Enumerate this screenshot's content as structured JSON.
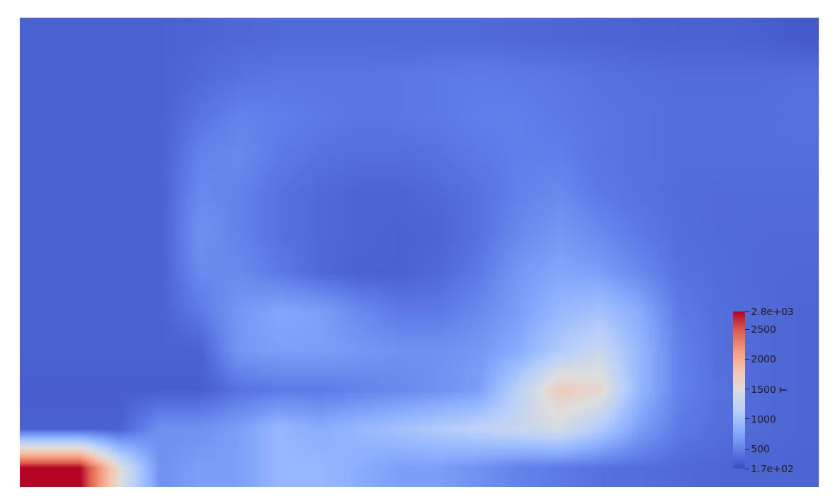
{
  "chart_data": {
    "type": "heatmap",
    "cells": [
      [
        300,
        300,
        300,
        300,
        320,
        340,
        350,
        350,
        350,
        350,
        350,
        350,
        340,
        330,
        320,
        310,
        300,
        300,
        290,
        250
      ],
      [
        300,
        300,
        300,
        300,
        350,
        400,
        420,
        420,
        420,
        430,
        450,
        460,
        450,
        430,
        400,
        380,
        370,
        370,
        370,
        380
      ],
      [
        300,
        300,
        300,
        300,
        420,
        500,
        480,
        450,
        420,
        430,
        450,
        480,
        480,
        450,
        420,
        400,
        380,
        380,
        380,
        400
      ],
      [
        300,
        300,
        300,
        300,
        500,
        550,
        450,
        400,
        380,
        380,
        400,
        450,
        480,
        480,
        420,
        400,
        380,
        380,
        380,
        380
      ],
      [
        300,
        300,
        300,
        300,
        550,
        500,
        400,
        350,
        320,
        320,
        350,
        400,
        500,
        550,
        450,
        400,
        370,
        360,
        360,
        360
      ],
      [
        300,
        300,
        300,
        300,
        600,
        500,
        400,
        350,
        320,
        300,
        320,
        400,
        550,
        650,
        550,
        450,
        380,
        360,
        350,
        350
      ],
      [
        300,
        300,
        300,
        300,
        550,
        550,
        450,
        350,
        300,
        300,
        350,
        450,
        650,
        750,
        700,
        550,
        400,
        370,
        350,
        340
      ],
      [
        300,
        300,
        300,
        300,
        450,
        650,
        750,
        700,
        550,
        450,
        450,
        550,
        700,
        900,
        1000,
        800,
        450,
        380,
        350,
        330
      ],
      [
        300,
        300,
        300,
        300,
        300,
        650,
        700,
        700,
        650,
        600,
        600,
        650,
        800,
        1100,
        1300,
        900,
        500,
        380,
        350,
        330
      ],
      [
        280,
        280,
        280,
        280,
        280,
        400,
        450,
        450,
        500,
        550,
        600,
        700,
        1200,
        1700,
        1600,
        900,
        500,
        400,
        350,
        330
      ],
      [
        300,
        300,
        300,
        600,
        600,
        700,
        900,
        800,
        900,
        1000,
        1100,
        1200,
        1300,
        1400,
        1100,
        700,
        450,
        380,
        350,
        330
      ],
      [
        2800,
        2800,
        1500,
        600,
        700,
        700,
        900,
        900,
        800,
        700,
        700,
        600,
        500,
        450,
        400,
        380,
        350,
        330,
        320,
        320
      ]
    ],
    "zlim": [
      170,
      2800
    ],
    "zticks": [
      {
        "value": 170,
        "label": "1.7e+02"
      },
      500,
      1000,
      1500,
      2000,
      2500,
      {
        "value": 2800,
        "label": "2.8e+03"
      }
    ],
    "colorbar_title": "T",
    "tick_labels": false
  }
}
